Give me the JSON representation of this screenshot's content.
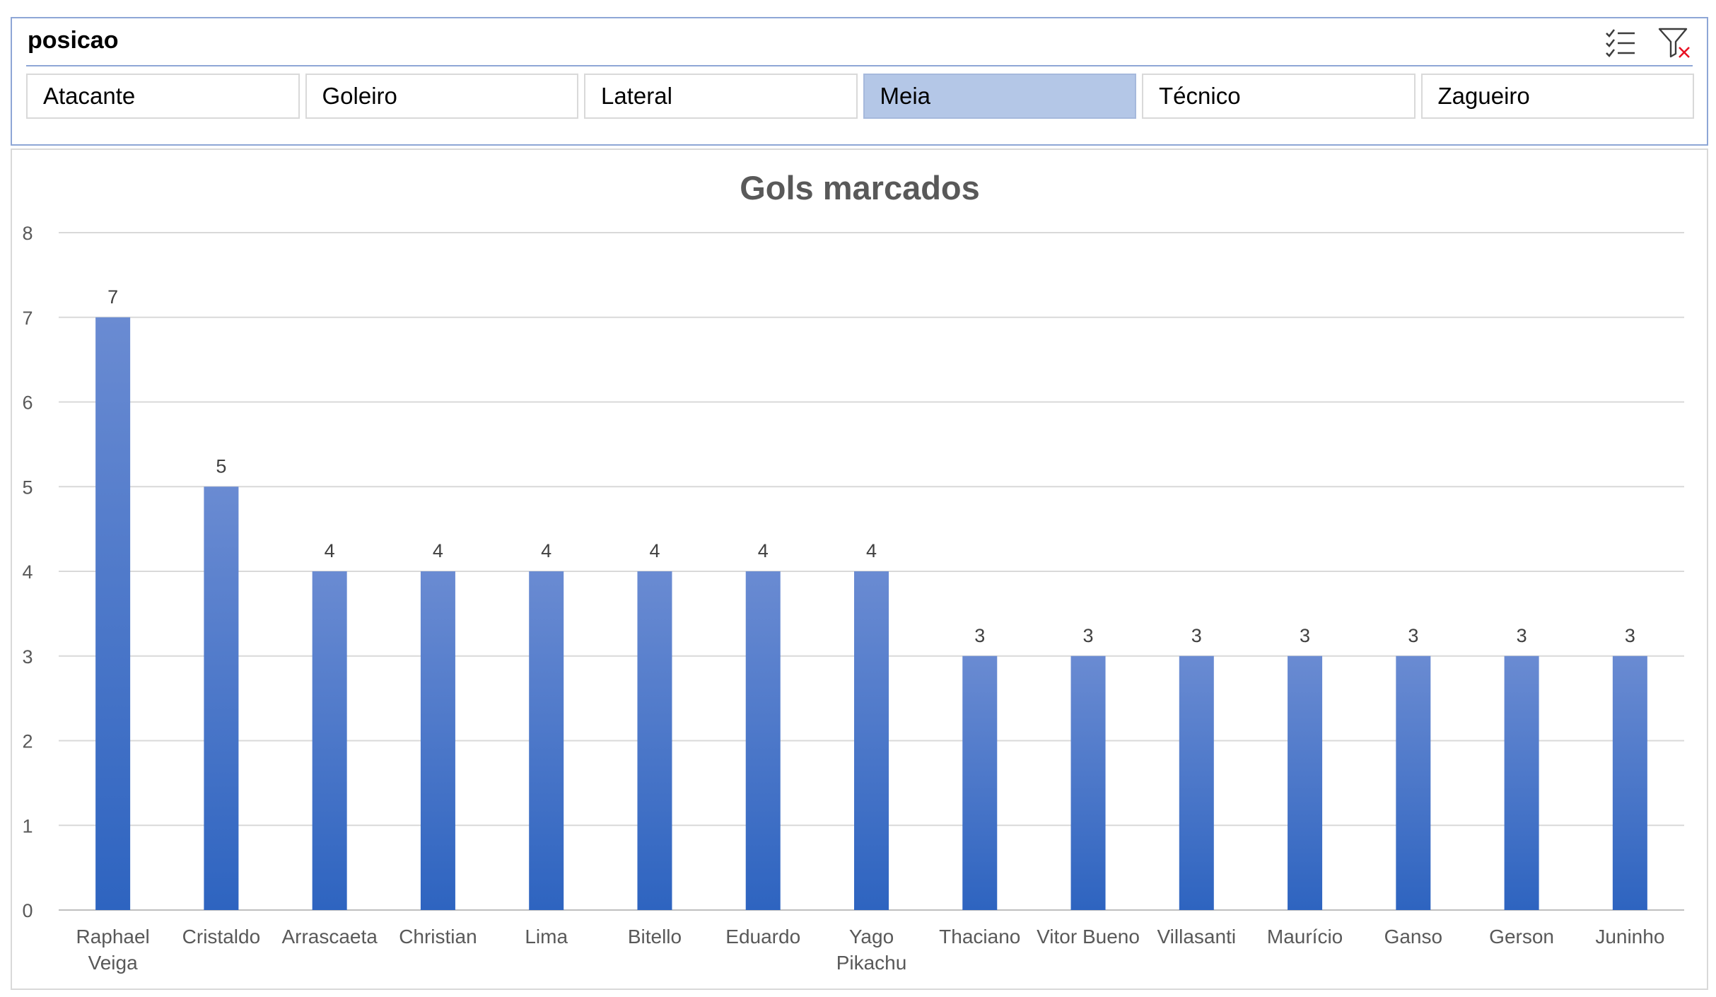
{
  "slicer": {
    "title": "posicao",
    "items": [
      {
        "label": "Atacante",
        "selected": false
      },
      {
        "label": "Goleiro",
        "selected": false
      },
      {
        "label": "Lateral",
        "selected": false
      },
      {
        "label": "Meia",
        "selected": true
      },
      {
        "label": "Técnico",
        "selected": false
      },
      {
        "label": "Zagueiro",
        "selected": false
      }
    ],
    "icons": [
      "multi-select-icon",
      "clear-filter-icon"
    ],
    "colors": {
      "border": "#8ea6d6",
      "selected_fill": "#b4c7e7",
      "clear_x": "#e81123"
    }
  },
  "chart_data": {
    "type": "bar",
    "title": "Gols marcados",
    "xlabel": "",
    "ylabel": "",
    "ylim": [
      0,
      8
    ],
    "yticks": [
      0,
      1,
      2,
      3,
      4,
      5,
      6,
      7,
      8
    ],
    "grid": true,
    "legend": "none",
    "data_labels": true,
    "bar_color_top": "#6a8bd2",
    "bar_color_bottom": "#2e64c0",
    "categories": [
      "Raphael Veiga",
      "Cristaldo",
      "Arrascaeta",
      "Christian",
      "Lima",
      "Bitello",
      "Eduardo",
      "Yago Pikachu",
      "Thaciano",
      "Vitor Bueno",
      "Villasanti",
      "Maurício",
      "Ganso",
      "Gerson",
      "Juninho"
    ],
    "values": [
      7,
      5,
      4,
      4,
      4,
      4,
      4,
      4,
      3,
      3,
      3,
      3,
      3,
      3,
      3
    ]
  }
}
